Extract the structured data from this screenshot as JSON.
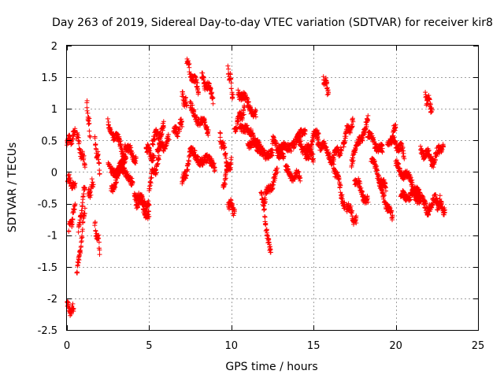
{
  "chart_data": {
    "type": "scatter",
    "title": "Day 263 of 2019, Sidereal Day-to-day VTEC variation (SDTVAR) for receiver kir8",
    "xlabel": "GPS time / hours",
    "ylabel": "SDTVAR / TECUs",
    "xlim": [
      0,
      25
    ],
    "ylim": [
      -2.5,
      2
    ],
    "xticks": [
      0,
      5,
      10,
      15,
      20,
      25
    ],
    "yticks": [
      -2.5,
      -2,
      -1.5,
      -1,
      -0.5,
      0,
      0.5,
      1,
      1.5,
      2
    ],
    "xtick_labels": [
      "0",
      "5",
      "10",
      "15",
      "20",
      "25"
    ],
    "ytick_labels": [
      "-2.5",
      "-2",
      "-1.5",
      "-1",
      "-0.5",
      "0",
      "0.5",
      "1",
      "1.5",
      "2"
    ],
    "grid": true,
    "marker": "+",
    "color": "#ff0000",
    "series": [
      {
        "name": "SDTVAR",
        "tracks": [
          {
            "t": [
              0.0,
              0.4
            ],
            "y": [
              -2.12,
              -2.22
            ]
          },
          {
            "t": [
              0.0,
              0.5
            ],
            "y": [
              0.45,
              0.6
            ]
          },
          {
            "t": [
              0.05,
              0.5
            ],
            "y": [
              -0.1,
              -0.25
            ]
          },
          {
            "t": [
              0.1,
              0.5
            ],
            "y": [
              -0.95,
              -0.55
            ]
          },
          {
            "t": [
              0.6,
              1.1
            ],
            "y": [
              -1.65,
              -0.6
            ]
          },
          {
            "t": [
              0.6,
              1.1
            ],
            "y": [
              0.55,
              0.1
            ]
          },
          {
            "t": [
              0.7,
              1.1
            ],
            "y": [
              -0.95,
              -0.2
            ]
          },
          {
            "t": [
              1.2,
              1.4
            ],
            "y": [
              1.1,
              0.6
            ]
          },
          {
            "t": [
              1.3,
              1.6
            ],
            "y": [
              -0.4,
              -0.15
            ]
          },
          {
            "t": [
              1.7,
              2.0
            ],
            "y": [
              -0.85,
              -1.2
            ]
          },
          {
            "t": [
              1.7,
              2.0
            ],
            "y": [
              0.5,
              0.05
            ]
          },
          {
            "t": [
              2.5,
              3.5
            ],
            "y": [
              0.75,
              0.3
            ]
          },
          {
            "t": [
              2.5,
              4.0
            ],
            "y": [
              0.1,
              -0.1
            ]
          },
          {
            "t": [
              2.7,
              3.6
            ],
            "y": [
              -0.3,
              0.3
            ]
          },
          {
            "t": [
              3.5,
              4.2
            ],
            "y": [
              0.45,
              0.2
            ]
          },
          {
            "t": [
              4.1,
              5.0
            ],
            "y": [
              -0.3,
              -0.7
            ]
          },
          {
            "t": [
              4.2,
              5.0
            ],
            "y": [
              -0.45,
              -0.5
            ]
          },
          {
            "t": [
              4.8,
              5.3
            ],
            "y": [
              0.4,
              0.2
            ]
          },
          {
            "t": [
              5.0,
              5.6
            ],
            "y": [
              -0.2,
              0.2
            ]
          },
          {
            "t": [
              5.2,
              5.9
            ],
            "y": [
              0.5,
              0.7
            ]
          },
          {
            "t": [
              5.5,
              6.2
            ],
            "y": [
              0.35,
              0.5
            ]
          },
          {
            "t": [
              6.5,
              7.0
            ],
            "y": [
              0.6,
              0.75
            ]
          },
          {
            "t": [
              7.0,
              7.3
            ],
            "y": [
              1.2,
              1.05
            ]
          },
          {
            "t": [
              7.0,
              7.6
            ],
            "y": [
              -0.2,
              0.35
            ]
          },
          {
            "t": [
              7.3,
              8.0
            ],
            "y": [
              1.7,
              1.3
            ]
          },
          {
            "t": [
              7.5,
              8.6
            ],
            "y": [
              1.0,
              0.65
            ]
          },
          {
            "t": [
              7.5,
              9.0
            ],
            "y": [
              0.3,
              0.1
            ]
          },
          {
            "t": [
              8.2,
              8.9
            ],
            "y": [
              1.5,
              1.2
            ]
          },
          {
            "t": [
              9.3,
              9.8
            ],
            "y": [
              0.6,
              0.1
            ]
          },
          {
            "t": [
              9.5,
              10.0
            ],
            "y": [
              -0.2,
              0.2
            ]
          },
          {
            "t": [
              9.8,
              10.1
            ],
            "y": [
              1.65,
              1.2
            ]
          },
          {
            "t": [
              9.8,
              10.2
            ],
            "y": [
              -0.45,
              -0.6
            ]
          },
          {
            "t": [
              10.2,
              10.8
            ],
            "y": [
              0.7,
              1.0
            ]
          },
          {
            "t": [
              10.4,
              11.5
            ],
            "y": [
              1.3,
              0.9
            ]
          },
          {
            "t": [
              10.5,
              12.0
            ],
            "y": [
              0.8,
              0.3
            ]
          },
          {
            "t": [
              11.0,
              12.5
            ],
            "y": [
              0.5,
              0.25
            ]
          },
          {
            "t": [
              11.8,
              12.4
            ],
            "y": [
              -0.3,
              -1.35
            ]
          },
          {
            "t": [
              12.0,
              12.8
            ],
            "y": [
              -0.45,
              0.0
            ]
          },
          {
            "t": [
              12.5,
              13.2
            ],
            "y": [
              0.5,
              0.2
            ]
          },
          {
            "t": [
              12.8,
              14.5
            ],
            "y": [
              0.3,
              0.6
            ]
          },
          {
            "t": [
              13.3,
              14.2
            ],
            "y": [
              0.0,
              -0.1
            ]
          },
          {
            "t": [
              14.0,
              15.0
            ],
            "y": [
              0.5,
              0.25
            ]
          },
          {
            "t": [
              14.5,
              15.3
            ],
            "y": [
              0.2,
              0.7
            ]
          },
          {
            "t": [
              15.2,
              16.0
            ],
            "y": [
              0.5,
              0.3
            ]
          },
          {
            "t": [
              15.6,
              15.9
            ],
            "y": [
              1.5,
              1.3
            ]
          },
          {
            "t": [
              16.0,
              16.7
            ],
            "y": [
              0.2,
              0.4
            ]
          },
          {
            "t": [
              16.2,
              16.9
            ],
            "y": [
              0.15,
              -0.55
            ]
          },
          {
            "t": [
              16.8,
              17.4
            ],
            "y": [
              0.5,
              0.8
            ]
          },
          {
            "t": [
              17.0,
              17.6
            ],
            "y": [
              -0.5,
              -0.8
            ]
          },
          {
            "t": [
              17.3,
              18.3
            ],
            "y": [
              0.2,
              0.8
            ]
          },
          {
            "t": [
              17.5,
              18.3
            ],
            "y": [
              -0.1,
              -0.5
            ]
          },
          {
            "t": [
              18.3,
              19.2
            ],
            "y": [
              0.6,
              0.3
            ]
          },
          {
            "t": [
              18.5,
              19.4
            ],
            "y": [
              0.2,
              -0.3
            ]
          },
          {
            "t": [
              19.0,
              19.8
            ],
            "y": [
              -0.2,
              -0.75
            ]
          },
          {
            "t": [
              19.5,
              20.0
            ],
            "y": [
              0.4,
              0.7
            ]
          },
          {
            "t": [
              19.8,
              20.5
            ],
            "y": [
              0.5,
              0.3
            ]
          },
          {
            "t": [
              20.0,
              21.0
            ],
            "y": [
              0.1,
              -0.15
            ]
          },
          {
            "t": [
              20.3,
              21.5
            ],
            "y": [
              -0.4,
              -0.3
            ]
          },
          {
            "t": [
              21.0,
              22.0
            ],
            "y": [
              -0.3,
              -0.6
            ]
          },
          {
            "t": [
              21.5,
              22.3
            ],
            "y": [
              0.35,
              0.2
            ]
          },
          {
            "t": [
              21.8,
              22.2
            ],
            "y": [
              1.2,
              1.0
            ]
          },
          {
            "t": [
              22.0,
              22.7
            ],
            "y": [
              -0.55,
              -0.4
            ]
          },
          {
            "t": [
              22.2,
              22.9
            ],
            "y": [
              0.15,
              0.45
            ]
          },
          {
            "t": [
              22.5,
              23.0
            ],
            "y": [
              -0.5,
              -0.6
            ]
          }
        ]
      }
    ]
  }
}
